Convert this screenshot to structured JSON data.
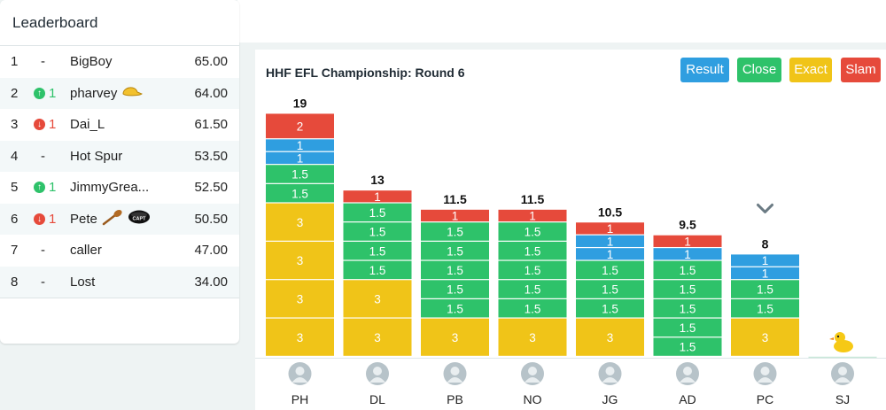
{
  "leaderboard": {
    "title": "Leaderboard",
    "rows": [
      {
        "rank": "1",
        "move": "-",
        "dir": "none",
        "name": "BigBoy",
        "score": "65.00",
        "badges": []
      },
      {
        "rank": "2",
        "move": "1",
        "dir": "up",
        "name": "pharvey",
        "score": "64.00",
        "badges": [
          "cap-icon"
        ]
      },
      {
        "rank": "3",
        "move": "1",
        "dir": "down",
        "name": "Dai_L",
        "score": "61.50",
        "badges": []
      },
      {
        "rank": "4",
        "move": "-",
        "dir": "none",
        "name": "Hot Spur",
        "score": "53.50",
        "badges": []
      },
      {
        "rank": "5",
        "move": "1",
        "dir": "up",
        "name": "JimmyGrea...",
        "score": "52.50",
        "badges": []
      },
      {
        "rank": "6",
        "move": "1",
        "dir": "down",
        "name": "Pete",
        "score": "50.50",
        "badges": [
          "wooden-spoon-icon",
          "captain-armband-icon"
        ]
      },
      {
        "rank": "7",
        "move": "-",
        "dir": "none",
        "name": "caller",
        "score": "47.00",
        "badges": []
      },
      {
        "rank": "8",
        "move": "-",
        "dir": "none",
        "name": "Lost",
        "score": "34.00",
        "badges": []
      }
    ]
  },
  "panel": {
    "title": "HHF EFL Championship: Round 6",
    "buttons": {
      "result": "Result",
      "close": "Close",
      "exact": "Exact",
      "slam": "Slam"
    },
    "armband_text": "CAPT"
  },
  "colors": {
    "exact": "#f0c418",
    "close": "#2ec26a",
    "result": "#2f9ee0",
    "slam": "#e64a3b"
  },
  "chart_data": {
    "type": "bar",
    "stacked": true,
    "categories": [
      "PH",
      "DL",
      "PB",
      "NO",
      "JG",
      "AD",
      "PC",
      "SJ"
    ],
    "totals": [
      "19",
      "13",
      "11.5",
      "11.5",
      "10.5",
      "9.5",
      "8",
      ""
    ],
    "segments": [
      [
        [
          "exact",
          3
        ],
        [
          "exact",
          3
        ],
        [
          "exact",
          3
        ],
        [
          "exact",
          3
        ],
        [
          "close",
          1.5
        ],
        [
          "close",
          1.5
        ],
        [
          "result",
          1
        ],
        [
          "result",
          1
        ],
        [
          "slam",
          2
        ]
      ],
      [
        [
          "exact",
          3
        ],
        [
          "exact",
          3
        ],
        [
          "close",
          1.5
        ],
        [
          "close",
          1.5
        ],
        [
          "close",
          1.5
        ],
        [
          "close",
          1.5
        ],
        [
          "slam",
          1
        ]
      ],
      [
        [
          "exact",
          3
        ],
        [
          "close",
          1.5
        ],
        [
          "close",
          1.5
        ],
        [
          "close",
          1.5
        ],
        [
          "close",
          1.5
        ],
        [
          "close",
          1.5
        ],
        [
          "slam",
          1
        ]
      ],
      [
        [
          "exact",
          3
        ],
        [
          "close",
          1.5
        ],
        [
          "close",
          1.5
        ],
        [
          "close",
          1.5
        ],
        [
          "close",
          1.5
        ],
        [
          "close",
          1.5
        ],
        [
          "slam",
          1
        ]
      ],
      [
        [
          "exact",
          3
        ],
        [
          "close",
          1.5
        ],
        [
          "close",
          1.5
        ],
        [
          "close",
          1.5
        ],
        [
          "result",
          1
        ],
        [
          "result",
          1
        ],
        [
          "slam",
          1
        ]
      ],
      [
        [
          "close",
          1.5
        ],
        [
          "close",
          1.5
        ],
        [
          "close",
          1.5
        ],
        [
          "close",
          1.5
        ],
        [
          "close",
          1.5
        ],
        [
          "result",
          1
        ],
        [
          "slam",
          1
        ]
      ],
      [
        [
          "exact",
          3
        ],
        [
          "close",
          1.5
        ],
        [
          "close",
          1.5
        ],
        [
          "result",
          1
        ],
        [
          "result",
          1
        ]
      ],
      []
    ],
    "markers": {
      "PC": "chevron-down-icon",
      "SJ": "rubber-duck-icon"
    }
  }
}
